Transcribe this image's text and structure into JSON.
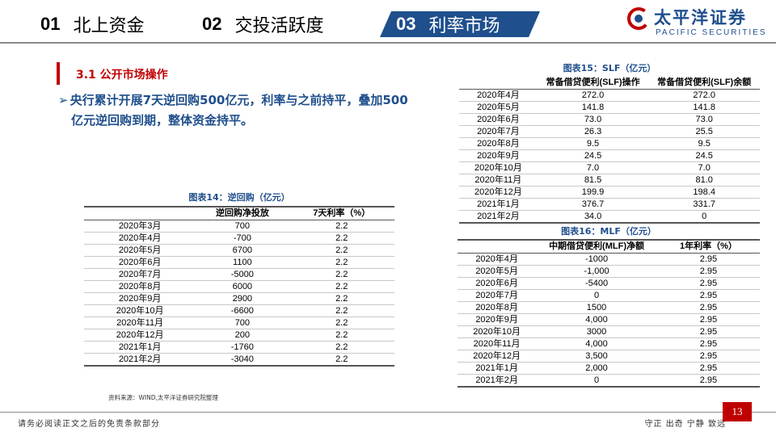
{
  "header": {
    "tabs": [
      {
        "num": "01",
        "label": "北上资金"
      },
      {
        "num": "02",
        "label": "交投活跃度"
      },
      {
        "num": "03",
        "label": "利率市场"
      }
    ],
    "logo_cn": "太平洋证券",
    "logo_en": "PACIFIC SECURITIES"
  },
  "section": {
    "title": "3.1  公开市场操作",
    "bullet_arrow": "➢",
    "bullet_line1": "央行累计开展7天逆回购500亿元，利率与之前持平，叠加500",
    "bullet_line2": "亿元逆回购到期，整体资金持平。"
  },
  "table14": {
    "title": "图表14：逆回购（亿元）",
    "headers": [
      "",
      "逆回购净投放",
      "7天利率（%）"
    ],
    "rows": [
      [
        "2020年3月",
        "700",
        "2.2"
      ],
      [
        "2020年4月",
        "-700",
        "2.2"
      ],
      [
        "2020年5月",
        "6700",
        "2.2"
      ],
      [
        "2020年6月",
        "1100",
        "2.2"
      ],
      [
        "2020年7月",
        "-5000",
        "2.2"
      ],
      [
        "2020年8月",
        "6000",
        "2.2"
      ],
      [
        "2020年9月",
        "2900",
        "2.2"
      ],
      [
        "2020年10月",
        "-6600",
        "2.2"
      ],
      [
        "2020年11月",
        "700",
        "2.2"
      ],
      [
        "2020年12月",
        "200",
        "2.2"
      ],
      [
        "2021年1月",
        "-1760",
        "2.2"
      ],
      [
        "2021年2月",
        "-3040",
        "2.2"
      ]
    ]
  },
  "table15": {
    "title": "图表15：SLF（亿元）",
    "headers": [
      "",
      "常备借贷便利(SLF)操作",
      "常备借贷便利(SLF)余额"
    ],
    "rows": [
      [
        "2020年4月",
        "272.0",
        "272.0"
      ],
      [
        "2020年5月",
        "141.8",
        "141.8"
      ],
      [
        "2020年6月",
        "73.0",
        "73.0"
      ],
      [
        "2020年7月",
        "26.3",
        "25.5"
      ],
      [
        "2020年8月",
        "9.5",
        "9.5"
      ],
      [
        "2020年9月",
        "24.5",
        "24.5"
      ],
      [
        "2020年10月",
        "7.0",
        "7.0"
      ],
      [
        "2020年11月",
        "81.5",
        "81.0"
      ],
      [
        "2020年12月",
        "199.9",
        "198.4"
      ],
      [
        "2021年1月",
        "376.7",
        "331.7"
      ],
      [
        "2021年2月",
        "34.0",
        "0"
      ]
    ]
  },
  "table16": {
    "title": "图表16：MLF（亿元）",
    "headers": [
      "",
      "中期借贷便利(MLF)净额",
      "1年利率（%）"
    ],
    "rows": [
      [
        "2020年4月",
        "-1000",
        "2.95"
      ],
      [
        "2020年5月",
        "-1,000",
        "2.95"
      ],
      [
        "2020年6月",
        "-5400",
        "2.95"
      ],
      [
        "2020年7月",
        "0",
        "2.95"
      ],
      [
        "2020年8月",
        "1500",
        "2.95"
      ],
      [
        "2020年9月",
        "4,000",
        "2.95"
      ],
      [
        "2020年10月",
        "3000",
        "2.95"
      ],
      [
        "2020年11月",
        "4,000",
        "2.95"
      ],
      [
        "2020年12月",
        "3,500",
        "2.95"
      ],
      [
        "2021年1月",
        "2,000",
        "2.95"
      ],
      [
        "2021年2月",
        "0",
        "2.95"
      ]
    ]
  },
  "source": "资料来源：WIND,太平洋证券研究院整理",
  "footer": {
    "left": "请务必阅读正文之后的免责条款部分",
    "right": "守正  出奇  宁静  致远",
    "page": "13"
  },
  "colors": {
    "brand_blue": "#1f4f8c",
    "accent_red": "#c00000"
  }
}
